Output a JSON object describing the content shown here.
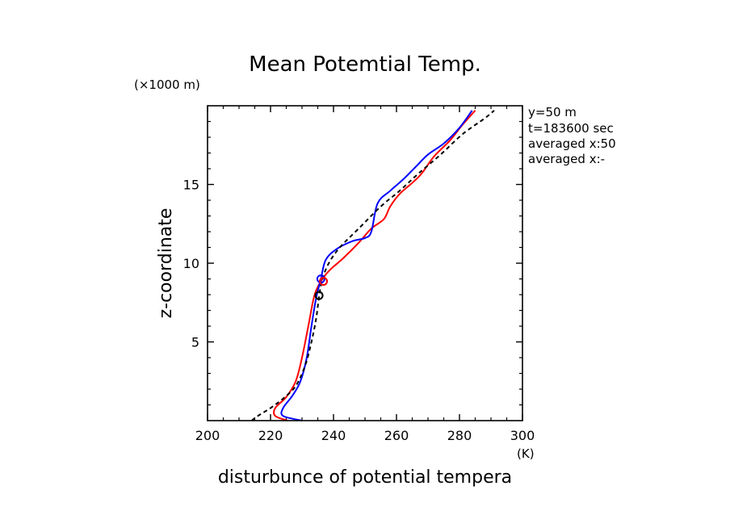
{
  "chart_data": {
    "type": "line",
    "title": "Mean Potemtial Temp.",
    "xlabel": "disturbunce of potential tempera",
    "ylabel": "z-coordinate",
    "x_unit": "(K)",
    "y_unit": "(×1000 m)",
    "xlim": [
      200,
      300
    ],
    "ylim": [
      0,
      20
    ],
    "x_ticks": [
      {
        "value": 200,
        "label": "200"
      },
      {
        "value": 220,
        "label": "220"
      },
      {
        "value": 240,
        "label": "240"
      },
      {
        "value": 260,
        "label": "260"
      },
      {
        "value": 280,
        "label": "280"
      },
      {
        "value": 300,
        "label": "300"
      }
    ],
    "y_ticks": [
      {
        "value": 5,
        "label": "5"
      },
      {
        "value": 10,
        "label": "10"
      },
      {
        "value": 15,
        "label": "15"
      }
    ],
    "info_lines": [
      "y=50  m",
      "t=183600 sec",
      "averaged  x:50",
      "averaged  x:-"
    ],
    "series": [
      {
        "color": "#ff0000",
        "style": "solid",
        "points": [
          [
            225.5,
            0
          ],
          [
            221.5,
            0.3
          ],
          [
            221.5,
            0.8
          ],
          [
            225,
            1.5
          ],
          [
            228,
            2.5
          ],
          [
            230,
            4
          ],
          [
            232,
            6
          ],
          [
            234,
            8
          ],
          [
            236.5,
            9
          ],
          [
            239,
            9.6
          ],
          [
            243,
            10.3
          ],
          [
            248,
            11.3
          ],
          [
            252,
            12.2
          ],
          [
            256,
            12.8
          ],
          [
            258,
            13.6
          ],
          [
            261,
            14.4
          ],
          [
            265,
            15.1
          ],
          [
            268,
            15.7
          ],
          [
            272,
            16.8
          ],
          [
            277,
            17.8
          ],
          [
            281,
            18.8
          ],
          [
            285,
            19.7
          ]
        ]
      },
      {
        "color": "#0000ff",
        "style": "solid",
        "points": [
          [
            230,
            0
          ],
          [
            224,
            0.3
          ],
          [
            224,
            0.8
          ],
          [
            227,
            1.6
          ],
          [
            229.5,
            2.5
          ],
          [
            231.5,
            4
          ],
          [
            233,
            6
          ],
          [
            234.5,
            7.8
          ],
          [
            236,
            9
          ],
          [
            237.5,
            10.2
          ],
          [
            241,
            10.9
          ],
          [
            246,
            11.4
          ],
          [
            250,
            11.6
          ],
          [
            252,
            12
          ],
          [
            254,
            13.8
          ],
          [
            258,
            14.6
          ],
          [
            262,
            15.3
          ],
          [
            266,
            16.1
          ],
          [
            270,
            16.9
          ],
          [
            275,
            17.6
          ],
          [
            280,
            18.6
          ],
          [
            284,
            19.7
          ]
        ]
      },
      {
        "color": "#000000",
        "style": "dashed",
        "points": [
          [
            214,
            0
          ],
          [
            216,
            0.3
          ],
          [
            220,
            0.8
          ],
          [
            224,
            1.4
          ],
          [
            228,
            2.2
          ],
          [
            231,
            3.5
          ],
          [
            233,
            5
          ],
          [
            234.5,
            6.5
          ],
          [
            235.5,
            8
          ],
          [
            236.5,
            9
          ],
          [
            238.5,
            10
          ],
          [
            242,
            11
          ],
          [
            248,
            12.2
          ],
          [
            255,
            13.6
          ],
          [
            261,
            14.6
          ],
          [
            267,
            15.7
          ],
          [
            274,
            16.9
          ],
          [
            281,
            18.2
          ],
          [
            288,
            19.2
          ],
          [
            291,
            19.7
          ]
        ]
      }
    ],
    "markers": [
      {
        "color": "#0000ff",
        "shape": "circle",
        "x": 236,
        "y": 9
      },
      {
        "color": "#ff0000",
        "shape": "circle",
        "x": 236.8,
        "y": 8.85
      },
      {
        "color": "#000000",
        "shape": "circle",
        "x": 235.4,
        "y": 7.95
      }
    ]
  }
}
